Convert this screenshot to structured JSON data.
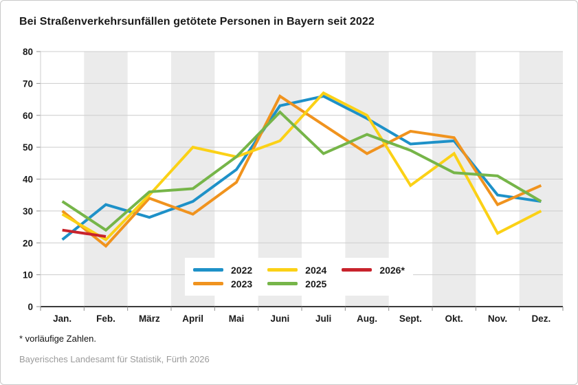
{
  "page": {
    "title": "Bei Straßenverkehrsunfällen getötete Personen in Bayern seit 2022",
    "footnote": "* vorläufige Zahlen.",
    "source": "Bayerisches Landesamt für Statistik, Fürth 2026"
  },
  "chart_data": {
    "type": "line",
    "title": "Bei Straßenverkehrsunfällen getötete Personen in Bayern seit 2022",
    "categories": [
      "Jan.",
      "Feb.",
      "März",
      "April",
      "Mai",
      "Juni",
      "Juli",
      "Aug.",
      "Sept.",
      "Okt.",
      "Nov.",
      "Dez."
    ],
    "xlabel": "",
    "ylabel": "",
    "ylim": [
      0,
      80
    ],
    "ytick_step": 10,
    "grid": true,
    "shaded_months": [
      "Feb.",
      "April",
      "Juni",
      "Aug.",
      "Okt.",
      "Dez."
    ],
    "legend_position": "bottom-center-overlay",
    "series": [
      {
        "name": "2022",
        "color": "#1e91c8",
        "values": [
          21,
          32,
          28,
          33,
          43,
          63,
          66,
          59,
          51,
          52,
          35,
          33
        ]
      },
      {
        "name": "2023",
        "color": "#f0931e",
        "values": [
          30,
          19,
          34,
          29,
          39,
          66,
          57,
          48,
          55,
          53,
          32,
          38
        ]
      },
      {
        "name": "2024",
        "color": "#fbd116",
        "values": [
          29,
          21,
          35,
          50,
          47,
          52,
          67,
          60,
          38,
          48,
          23,
          30
        ]
      },
      {
        "name": "2025",
        "color": "#76b549",
        "values": [
          33,
          24,
          36,
          37,
          47,
          61,
          48,
          54,
          49,
          42,
          41,
          33
        ]
      },
      {
        "name": "2026*",
        "color": "#c8232c",
        "values": [
          24,
          22,
          null,
          null,
          null,
          null,
          null,
          null,
          null,
          null,
          null,
          null
        ]
      }
    ],
    "style": {
      "band_color": "#ebebeb",
      "grid_color": "#cccccc",
      "axis_color": "#3a3a3a",
      "tick_color": "#8c8c8c",
      "line_width": 4
    }
  }
}
